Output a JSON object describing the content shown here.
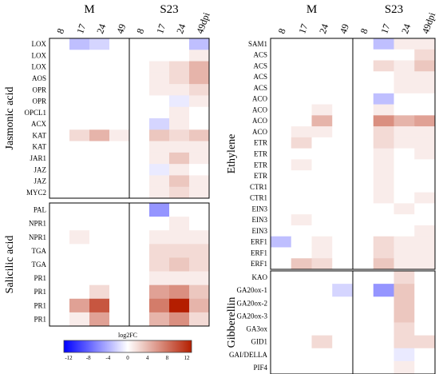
{
  "chart_data": [
    {
      "type": "heatmap",
      "panel": "left",
      "group_labels": [
        "M",
        "S23"
      ],
      "columns": [
        "8",
        "17",
        "24",
        "49",
        "8",
        "17",
        "24",
        "49dpi"
      ],
      "sections": [
        {
          "name": "Jasmonic acid",
          "rows": [
            {
              "gene": "LOX",
              "values": [
                0,
                -3,
                -2,
                0,
                0,
                0,
                0,
                -3
              ]
            },
            {
              "gene": "LOX",
              "values": [
                0,
                0,
                0,
                0,
                0,
                0,
                0,
                1
              ]
            },
            {
              "gene": "LOX",
              "values": [
                0,
                0,
                0,
                0,
                0,
                1,
                2,
                4
              ]
            },
            {
              "gene": "AOS",
              "values": [
                0,
                0,
                0,
                0,
                0,
                1,
                2,
                4
              ]
            },
            {
              "gene": "OPR",
              "values": [
                0,
                0,
                0,
                0,
                0,
                1,
                1,
                2
              ]
            },
            {
              "gene": "OPR",
              "values": [
                0,
                0,
                0,
                0,
                0,
                0,
                -1,
                1
              ]
            },
            {
              "gene": "OPCL1",
              "values": [
                0,
                0,
                0,
                0,
                0,
                0,
                1,
                0
              ]
            },
            {
              "gene": "ACX",
              "values": [
                0,
                0,
                0,
                0,
                0,
                -2,
                1,
                0
              ]
            },
            {
              "gene": "KAT",
              "values": [
                0,
                2,
                4,
                1,
                0,
                3,
                2,
                3
              ]
            },
            {
              "gene": "KAT",
              "values": [
                0,
                0,
                0,
                0,
                0,
                1,
                1,
                1
              ]
            },
            {
              "gene": "JAR1",
              "values": [
                0,
                0,
                0,
                0,
                0,
                1,
                3,
                1
              ]
            },
            {
              "gene": "JAZ",
              "values": [
                0,
                0,
                0,
                0,
                0,
                -1,
                1,
                0
              ]
            },
            {
              "gene": "JAZ",
              "values": [
                0,
                0,
                0,
                0,
                0,
                1,
                3,
                1
              ]
            },
            {
              "gene": "MYC2",
              "values": [
                0,
                0,
                0,
                0,
                0,
                1,
                2,
                1
              ]
            }
          ]
        },
        {
          "name": "Salicilic acid",
          "rows": [
            {
              "gene": "PAL",
              "values": [
                0,
                0,
                0,
                0,
                0,
                -5,
                0,
                0
              ]
            },
            {
              "gene": "NPR1",
              "values": [
                0,
                0,
                0,
                0,
                0,
                0,
                1,
                0
              ]
            },
            {
              "gene": "NPR1",
              "values": [
                0,
                1,
                0,
                0,
                0,
                1,
                1,
                1
              ]
            },
            {
              "gene": "TGA",
              "values": [
                0,
                0,
                0,
                0,
                0,
                2,
                2,
                2
              ]
            },
            {
              "gene": "TGA",
              "values": [
                0,
                0,
                0,
                0,
                0,
                2,
                3,
                2
              ]
            },
            {
              "gene": "PR1",
              "values": [
                0,
                0,
                0,
                0,
                0,
                1,
                1,
                1
              ]
            },
            {
              "gene": "PR1",
              "values": [
                0,
                0,
                2,
                0,
                0,
                5,
                6,
                3
              ]
            },
            {
              "gene": "PR1",
              "values": [
                0,
                5,
                9,
                0,
                0,
                7,
                12,
                4
              ]
            },
            {
              "gene": "PR1",
              "values": [
                0,
                1,
                5,
                0,
                0,
                4,
                6,
                2
              ]
            }
          ]
        }
      ]
    },
    {
      "type": "heatmap",
      "panel": "right",
      "group_labels": [
        "M",
        "S23"
      ],
      "columns": [
        "8",
        "17",
        "24",
        "49",
        "8",
        "17",
        "24",
        "49dpi"
      ],
      "sections": [
        {
          "name": "Ethylene",
          "rows": [
            {
              "gene": "SAM1",
              "values": [
                0,
                0,
                0,
                0,
                0,
                -3,
                1,
                1
              ]
            },
            {
              "gene": "ACS",
              "values": [
                0,
                0,
                0,
                0,
                0,
                0,
                0,
                2
              ]
            },
            {
              "gene": "ACS",
              "values": [
                0,
                0,
                0,
                0,
                0,
                2,
                1,
                3
              ]
            },
            {
              "gene": "ACS",
              "values": [
                0,
                0,
                0,
                0,
                0,
                0,
                1,
                1
              ]
            },
            {
              "gene": "ACS",
              "values": [
                0,
                0,
                0,
                0,
                0,
                0,
                1,
                1
              ]
            },
            {
              "gene": "ACO",
              "values": [
                0,
                0,
                0,
                0,
                0,
                -3,
                0,
                0
              ]
            },
            {
              "gene": "ACO",
              "values": [
                0,
                0,
                1,
                0,
                0,
                1,
                0,
                0
              ]
            },
            {
              "gene": "ACO",
              "values": [
                0,
                0,
                4,
                0,
                0,
                6,
                4,
                5
              ]
            },
            {
              "gene": "ACO",
              "values": [
                0,
                1,
                1,
                0,
                0,
                2,
                1,
                1
              ]
            },
            {
              "gene": "ETR",
              "values": [
                0,
                2,
                0,
                0,
                0,
                2,
                1,
                1
              ]
            },
            {
              "gene": "ETR",
              "values": [
                0,
                0,
                0,
                0,
                0,
                1,
                0,
                1
              ]
            },
            {
              "gene": "ETR",
              "values": [
                0,
                1,
                0,
                0,
                0,
                1,
                0,
                0
              ]
            },
            {
              "gene": "ETR",
              "values": [
                0,
                0,
                0,
                0,
                0,
                1,
                0,
                0
              ]
            },
            {
              "gene": "CTR1",
              "values": [
                0,
                0,
                0,
                0,
                0,
                1,
                0,
                0
              ]
            },
            {
              "gene": "CTR1",
              "values": [
                0,
                0,
                0,
                0,
                0,
                1,
                0,
                1
              ]
            },
            {
              "gene": "EIN3",
              "values": [
                0,
                0,
                0,
                0,
                0,
                0,
                1,
                0
              ]
            },
            {
              "gene": "EIN3",
              "values": [
                0,
                1,
                0,
                0,
                0,
                0,
                0,
                0
              ]
            },
            {
              "gene": "EIN3",
              "values": [
                0,
                0,
                0,
                0,
                0,
                0,
                0,
                1
              ]
            },
            {
              "gene": "ERF1",
              "values": [
                -3,
                0,
                1,
                0,
                0,
                2,
                1,
                1
              ]
            },
            {
              "gene": "ERF1",
              "values": [
                0,
                0,
                1,
                0,
                0,
                2,
                1,
                1
              ]
            },
            {
              "gene": "ERF1",
              "values": [
                0,
                3,
                2,
                0,
                0,
                3,
                1,
                1
              ]
            }
          ]
        },
        {
          "name": "Gibberellin",
          "rows": [
            {
              "gene": "KAO",
              "values": [
                0,
                0,
                0,
                0,
                0,
                0,
                2,
                0
              ]
            },
            {
              "gene": "GA20ox-1",
              "values": [
                0,
                0,
                0,
                -2,
                0,
                -5,
                3,
                0
              ]
            },
            {
              "gene": "GA20ox-2",
              "values": [
                0,
                0,
                0,
                0,
                0,
                0,
                3,
                0
              ]
            },
            {
              "gene": "GA20ox-3",
              "values": [
                0,
                0,
                0,
                0,
                0,
                0,
                3,
                0
              ]
            },
            {
              "gene": "GA3ox",
              "values": [
                0,
                0,
                0,
                0,
                0,
                0,
                2,
                0
              ]
            },
            {
              "gene": "GID1",
              "values": [
                0,
                0,
                2,
                0,
                0,
                0,
                2,
                2
              ]
            },
            {
              "gene": "GAI/DELLA",
              "values": [
                0,
                0,
                0,
                0,
                0,
                0,
                -1,
                0
              ]
            },
            {
              "gene": "PIF4",
              "values": [
                0,
                0,
                0,
                0,
                0,
                0,
                1,
                0
              ]
            }
          ]
        }
      ]
    }
  ],
  "colorbar": {
    "label": "log2FC",
    "ticks": [
      "-12",
      "-8",
      "-4",
      "0",
      "4",
      "8",
      "12"
    ],
    "range": [
      -12,
      12
    ],
    "colors": {
      "low": "#0000ff",
      "mid": "#ffffff",
      "high": "#b41e00"
    }
  }
}
